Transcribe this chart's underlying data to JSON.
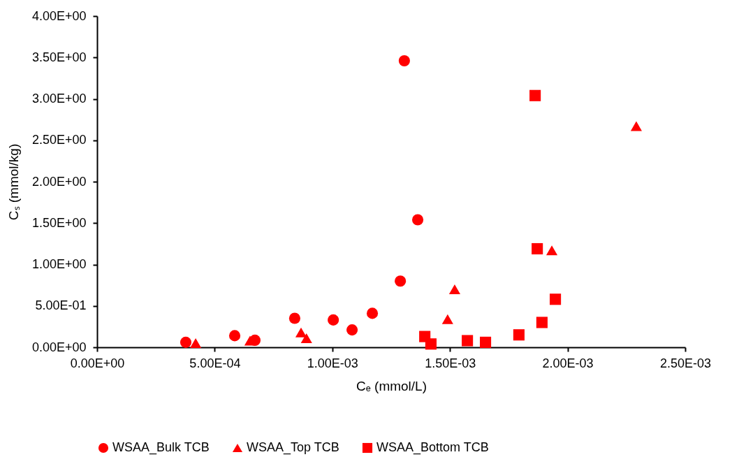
{
  "chart_data": {
    "type": "scatter",
    "xlabel": "Cₑ (mmol/L)",
    "ylabel": "Cₛ (mmol/kg)",
    "xlim": [
      0,
      0.0025
    ],
    "ylim": [
      0,
      4
    ],
    "xticks": [
      {
        "value": 0,
        "label": "0.00E+00"
      },
      {
        "value": 0.0005,
        "label": "5.00E-04"
      },
      {
        "value": 0.001,
        "label": "1.00E-03"
      },
      {
        "value": 0.0015,
        "label": "1.50E-03"
      },
      {
        "value": 0.002,
        "label": "2.00E-03"
      },
      {
        "value": 0.0025,
        "label": "2.50E-03"
      }
    ],
    "yticks": [
      {
        "value": 0,
        "label": "0.00E+00"
      },
      {
        "value": 0.5,
        "label": "5.00E-01"
      },
      {
        "value": 1,
        "label": "1.00E+00"
      },
      {
        "value": 1.5,
        "label": "1.50E+00"
      },
      {
        "value": 2,
        "label": "2.00E+00"
      },
      {
        "value": 2.5,
        "label": "2.50E+00"
      },
      {
        "value": 3,
        "label": "3.00E+00"
      },
      {
        "value": 3.5,
        "label": "3.50E+00"
      },
      {
        "value": 4,
        "label": "4.00E+00"
      }
    ],
    "grid": false,
    "legend": "bottom",
    "series": [
      {
        "name": "WSAA_Bulk TCB",
        "color": "#ff0000",
        "marker": "circle",
        "x": [
          0.000377,
          0.000585,
          0.000671,
          0.00084,
          0.001004,
          0.001084,
          0.00117,
          0.001289,
          0.001306,
          0.001363
        ],
        "values": [
          0.06,
          0.14,
          0.085,
          0.35,
          0.33,
          0.21,
          0.41,
          0.8,
          3.46,
          1.54
        ]
      },
      {
        "name": "WSAA_Top TCB",
        "color": "#ff0000",
        "marker": "triangle",
        "x": [
          0.000419,
          0.00065,
          0.000867,
          0.00089,
          0.00149,
          0.00152,
          0.001933,
          0.002292
        ],
        "values": [
          0.05,
          0.08,
          0.18,
          0.11,
          0.34,
          0.7,
          1.17,
          2.67
        ]
      },
      {
        "name": "WSAA_Bottom TCB",
        "color": "#ff0000",
        "marker": "square",
        "x": [
          0.001393,
          0.001419,
          0.001574,
          0.001651,
          0.001793,
          0.001862,
          0.001871,
          0.001891,
          0.001948
        ],
        "values": [
          0.13,
          0.04,
          0.08,
          0.06,
          0.15,
          3.04,
          1.19,
          0.3,
          0.58
        ]
      }
    ]
  }
}
